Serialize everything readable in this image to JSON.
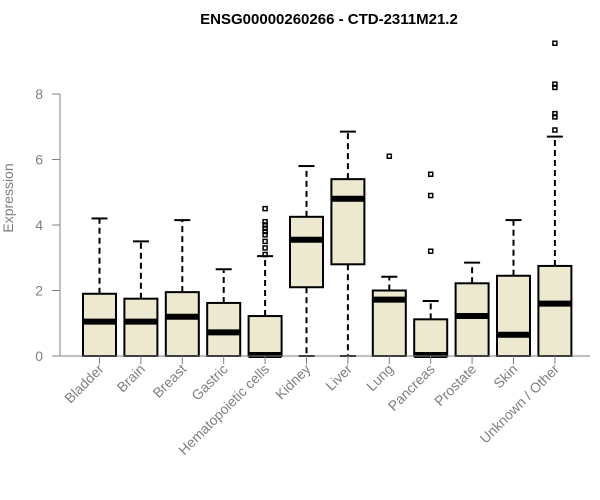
{
  "chart_data": {
    "type": "boxplot",
    "title": "ENSG00000260266 - CTD-2311M21.2",
    "xlabel": "",
    "ylabel": "Expression",
    "ylim": [
      0,
      9.7
    ],
    "yticks": [
      0,
      2,
      4,
      6,
      8
    ],
    "grid": false,
    "box_color": "#ede8d0",
    "categories": [
      "Bladder",
      "Brain",
      "Breast",
      "Gastric",
      "Hematopoietic cells",
      "Kidney",
      "Liver",
      "Lung",
      "Pancreas",
      "Prostate",
      "Skin",
      "Unknown / Other"
    ],
    "boxes": [
      {
        "category": "Bladder",
        "whislo": 0,
        "q1": 0,
        "med": 1.05,
        "q3": 1.9,
        "whishi": 4.2,
        "outliers": []
      },
      {
        "category": "Brain",
        "whislo": 0,
        "q1": 0,
        "med": 1.05,
        "q3": 1.75,
        "whishi": 3.5,
        "outliers": []
      },
      {
        "category": "Breast",
        "whislo": 0,
        "q1": 0,
        "med": 1.2,
        "q3": 1.95,
        "whishi": 4.15,
        "outliers": []
      },
      {
        "category": "Gastric",
        "whislo": 0,
        "q1": 0,
        "med": 0.72,
        "q3": 1.62,
        "whishi": 2.65,
        "outliers": []
      },
      {
        "category": "Hematopoietic cells",
        "whislo": 0,
        "q1": 0,
        "med": 0.03,
        "q3": 1.22,
        "whishi": 3.05,
        "outliers": [
          3.1,
          3.3,
          3.5,
          3.7,
          3.8,
          3.9,
          4.0,
          4.1,
          4.5
        ]
      },
      {
        "category": "Kidney",
        "whislo": 0,
        "q1": 2.1,
        "med": 3.55,
        "q3": 4.25,
        "whishi": 5.8,
        "outliers": []
      },
      {
        "category": "Liver",
        "whislo": 0,
        "q1": 2.8,
        "med": 4.8,
        "q3": 5.4,
        "whishi": 6.85,
        "outliers": []
      },
      {
        "category": "Lung",
        "whislo": 0,
        "q1": 0,
        "med": 1.72,
        "q3": 2.0,
        "whishi": 2.42,
        "outliers": [
          6.1
        ]
      },
      {
        "category": "Pancreas",
        "whislo": 0,
        "q1": 0,
        "med": 0.03,
        "q3": 1.12,
        "whishi": 1.68,
        "outliers": [
          3.2,
          4.9,
          5.55
        ]
      },
      {
        "category": "Prostate",
        "whislo": 0,
        "q1": 0,
        "med": 1.22,
        "q3": 2.22,
        "whishi": 2.85,
        "outliers": []
      },
      {
        "category": "Skin",
        "whislo": 0,
        "q1": 0,
        "med": 0.65,
        "q3": 2.45,
        "whishi": 4.15,
        "outliers": []
      },
      {
        "category": "Unknown / Other",
        "whislo": 0,
        "q1": 0,
        "med": 1.6,
        "q3": 2.75,
        "whishi": 6.7,
        "outliers": [
          6.9,
          7.3,
          7.4,
          8.2,
          8.3,
          9.55
        ]
      }
    ]
  }
}
